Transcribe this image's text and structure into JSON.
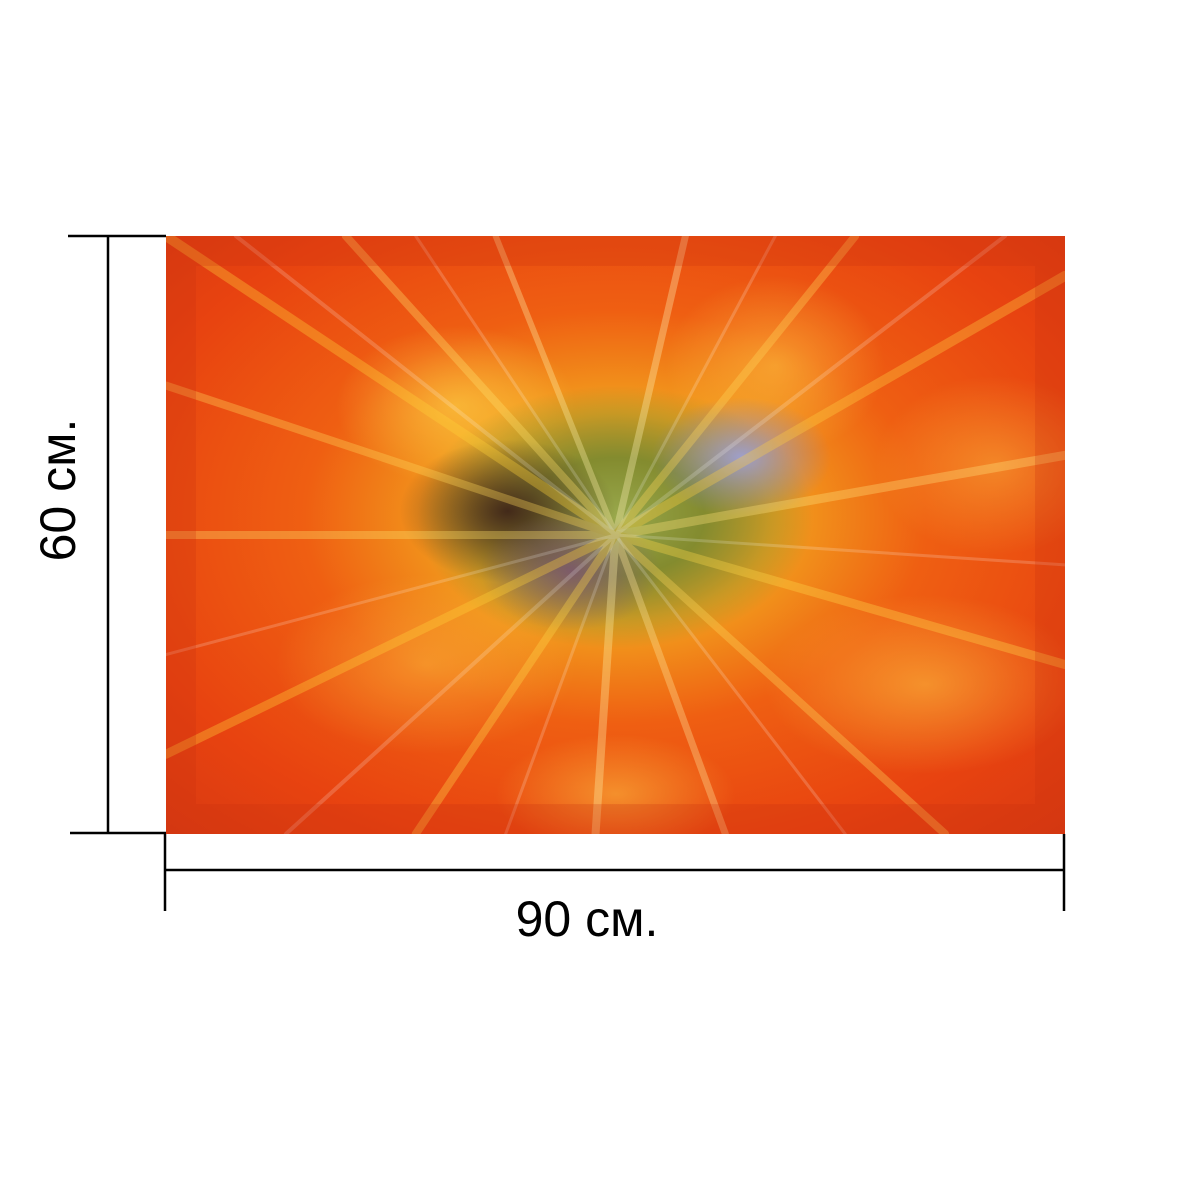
{
  "product": {
    "image_icon": "abstract-orange-burst-image",
    "dimensions": {
      "width_label": "90 см.",
      "height_label": "60 см."
    },
    "colors": {
      "line": "#000000",
      "background": "#ffffff",
      "primary": "#ee4a0c",
      "highlight": "#f7b21b",
      "center_green": "#7f8a2f",
      "center_blue": "#7c83c7",
      "center_dark": "#4e2b1f"
    }
  }
}
